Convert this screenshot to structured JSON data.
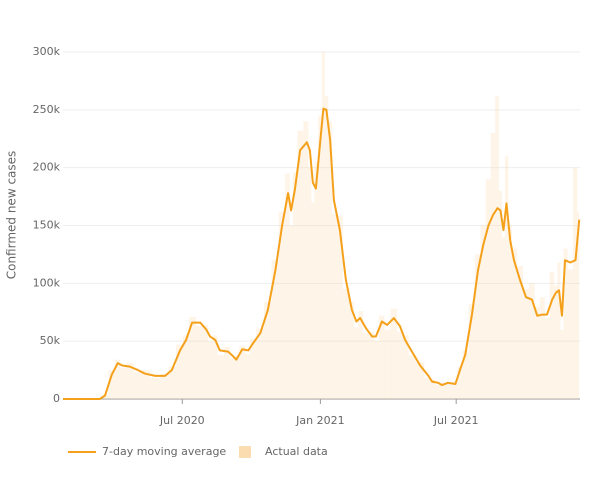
{
  "chart_data": {
    "type": "line",
    "y_label": "Confirmed new cases",
    "x": [
      23,
      72,
      79,
      88,
      96,
      102,
      112,
      123,
      132,
      146,
      159,
      168,
      179,
      187,
      195,
      206,
      214,
      219,
      226,
      232,
      243,
      248,
      254,
      262,
      270,
      275,
      286,
      296,
      306,
      315,
      323,
      327,
      332,
      339,
      348,
      352,
      356,
      360,
      366,
      370,
      374,
      379,
      384,
      392,
      400,
      408,
      414,
      419,
      427,
      435,
      440,
      448,
      455,
      464,
      472,
      479,
      488,
      499,
      510,
      515,
      523,
      528,
      536,
      546,
      552,
      559,
      568,
      576,
      583,
      590,
      596,
      602,
      606,
      610,
      614,
      619,
      624,
      632,
      640,
      648,
      655,
      662,
      668,
      675,
      680,
      684,
      688,
      692,
      699,
      706,
      711
    ],
    "series": [
      {
        "name": "7-day moving average",
        "color": "#f5a01a",
        "values": [
          0,
          0,
          3000,
          21000,
          31000,
          29000,
          28000,
          25000,
          22000,
          20000,
          20000,
          25000,
          42000,
          51000,
          66000,
          66000,
          60000,
          54000,
          51000,
          42000,
          41000,
          38000,
          34000,
          43000,
          42000,
          47000,
          57000,
          77000,
          111000,
          150000,
          178000,
          163000,
          181000,
          215000,
          222000,
          215000,
          187000,
          182000,
          224000,
          251000,
          250000,
          224000,
          172000,
          146000,
          103000,
          77000,
          67000,
          70000,
          61000,
          54000,
          54000,
          67000,
          64000,
          70000,
          63000,
          51000,
          41000,
          29000,
          20000,
          15000,
          14000,
          12000,
          14000,
          13000,
          25000,
          38000,
          73000,
          111000,
          133000,
          150000,
          159000,
          165000,
          163000,
          146000,
          169000,
          137000,
          120000,
          103000,
          88000,
          86000,
          72000,
          73000,
          73000,
          86000,
          92000,
          94000,
          72000,
          120000,
          118000,
          120000,
          155000
        ]
      },
      {
        "name": "Actual data",
        "color": "#fbdcb0",
        "values": [
          0,
          0,
          4000,
          25000,
          34000,
          27000,
          31000,
          23000,
          25000,
          18000,
          22000,
          28000,
          47000,
          55000,
          71000,
          63000,
          64000,
          50000,
          55000,
          38000,
          45000,
          35000,
          37000,
          46000,
          39000,
          52000,
          61000,
          84000,
          120000,
          162000,
          195000,
          150000,
          196000,
          232000,
          240000,
          200000,
          170000,
          205000,
          245000,
          300000,
          262000,
          240000,
          160000,
          158000,
          95000,
          84000,
          62000,
          76000,
          57000,
          58000,
          50000,
          72000,
          60000,
          78000,
          58000,
          55000,
          38000,
          32000,
          18000,
          17000,
          12000,
          14000,
          13000,
          15000,
          28000,
          42000,
          82000,
          125000,
          150000,
          190000,
          230000,
          262000,
          180000,
          140000,
          210000,
          150000,
          130000,
          115000,
          95000,
          100000,
          80000,
          88000,
          70000,
          110000,
          98000,
          118000,
          60000,
          130000,
          112000,
          200000,
          162000
        ]
      }
    ],
    "xlim": [
      23,
      712
    ],
    "xticks": [
      {
        "value": 182,
        "label": "Jul 2020"
      },
      {
        "value": 366,
        "label": "Jan 2021"
      },
      {
        "value": 547,
        "label": "Jul 2021"
      }
    ],
    "ylim": [
      0,
      300000
    ],
    "yticks": [
      0,
      {
        "value": 50000,
        "label": "50k"
      },
      {
        "value": 100000,
        "label": "100k"
      },
      {
        "value": 150000,
        "label": "150k"
      },
      {
        "value": 200000,
        "label": "200k"
      },
      {
        "value": 250000,
        "label": "250k"
      },
      {
        "value": 300000,
        "label": "300k"
      }
    ],
    "grid": true,
    "legend": "bottom"
  }
}
